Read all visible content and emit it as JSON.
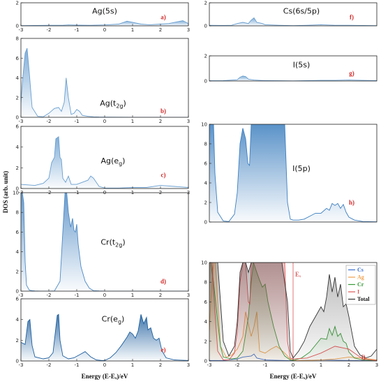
{
  "figure": {
    "ylabel": "DOS (arb. unit)",
    "xlabel_left": "Energy (E-Eₓ)/eV",
    "xlabel_right": "Energy (E-Eₓ)/eV"
  },
  "chart_data": [
    {
      "id": "a",
      "type": "area",
      "title": "Ag(5s)",
      "title_base": "Ag(5s)",
      "title_sub": "",
      "label": "a)",
      "xlim": [
        -3,
        3
      ],
      "ylim": [
        0,
        2
      ],
      "xticks": [
        -3,
        -2,
        -1,
        0,
        1,
        2,
        3
      ],
      "yticks": [
        0,
        2
      ],
      "color": "#6a9fd0",
      "series": [
        {
          "x": [
            -3,
            -2.5,
            -2,
            -1.5,
            -1.3,
            -1,
            -0.5,
            0,
            0.5,
            0.8,
            1,
            1.3,
            1.6,
            2,
            2.3,
            2.6,
            2.8,
            3
          ],
          "y": [
            0.02,
            0.03,
            0.05,
            0.05,
            0.08,
            0.06,
            0.05,
            0.08,
            0.15,
            0.4,
            0.3,
            0.15,
            0.1,
            0.15,
            0.2,
            0.35,
            0.45,
            0.2
          ]
        }
      ]
    },
    {
      "id": "b",
      "type": "area",
      "title": "Ag(t2g)",
      "title_base": "Ag(t",
      "title_sub": "2g",
      "label": "b)",
      "xlim": [
        -3,
        3
      ],
      "ylim": [
        0,
        8
      ],
      "xticks": [
        -3,
        -2,
        -1,
        0,
        1,
        2,
        3
      ],
      "yticks": [
        0,
        2,
        4,
        6,
        8
      ],
      "color": "#6a9fd0",
      "series": [
        {
          "x": [
            -3,
            -2.95,
            -2.85,
            -2.78,
            -2.7,
            -2.6,
            -2.4,
            -2.2,
            -2,
            -1.8,
            -1.65,
            -1.55,
            -1.45,
            -1.38,
            -1.3,
            -1.2,
            -1.1,
            -1,
            -0.9,
            -0.8,
            -0.6,
            -0.4,
            -0.2,
            0,
            1,
            2,
            3
          ],
          "y": [
            1.5,
            3.5,
            6.5,
            7.0,
            4.5,
            1.0,
            0.1,
            0.05,
            0.4,
            0.9,
            1.0,
            0.6,
            1.5,
            4.0,
            2.0,
            0.3,
            0.4,
            0.8,
            0.6,
            0.2,
            0.1,
            0.05,
            0.03,
            0.02,
            0.01,
            0.01,
            0.01
          ]
        }
      ]
    },
    {
      "id": "c",
      "type": "area",
      "title": "Ag(eg)",
      "title_base": "Ag(e",
      "title_sub": "g",
      "label": "c)",
      "xlim": [
        -3,
        3
      ],
      "ylim": [
        0,
        6
      ],
      "xticks": [
        -3,
        -2,
        -1,
        0,
        1,
        2,
        3
      ],
      "yticks": [
        0,
        2,
        4,
        6
      ],
      "color": "#6a9fd0",
      "series": [
        {
          "x": [
            -3,
            -2.5,
            -2.2,
            -2,
            -1.9,
            -1.8,
            -1.75,
            -1.65,
            -1.6,
            -1.55,
            -1.5,
            -1.4,
            -1.3,
            -1.2,
            -1,
            -0.8,
            -0.6,
            -0.5,
            -0.4,
            -0.3,
            -0.2,
            0,
            0.5,
            1,
            1.5,
            2,
            2.5,
            3
          ],
          "y": [
            0.4,
            0.3,
            0.5,
            1.0,
            2.5,
            3.0,
            4.8,
            5.0,
            3.0,
            2.8,
            1.0,
            0.6,
            1.2,
            0.4,
            0.4,
            0.6,
            0.8,
            1.2,
            1.0,
            0.6,
            0.2,
            0.05,
            0.05,
            0.1,
            0.1,
            0.3,
            0.2,
            0.1
          ]
        }
      ]
    },
    {
      "id": "d",
      "type": "area",
      "title": "Cr(t2g)",
      "title_base": "Cr(t",
      "title_sub": "2g",
      "label": "d)",
      "xlim": [
        -3,
        3
      ],
      "ylim": [
        0,
        10
      ],
      "xticks": [
        -3,
        -2,
        -1,
        0,
        1,
        2,
        3
      ],
      "yticks": [
        0,
        2,
        4,
        6,
        8,
        10
      ],
      "color": "#4f8ac4",
      "series": [
        {
          "x": [
            -3,
            -2.95,
            -2.9,
            -2.85,
            -2.8,
            -2.7,
            -2.6,
            -2.5,
            -2.3,
            -2,
            -1.8,
            -1.6,
            -1.5,
            -1.42,
            -1.36,
            -1.3,
            -1.22,
            -1.15,
            -1.1,
            -1.05,
            -1.0,
            -0.95,
            -0.85,
            -0.7,
            -0.55,
            -0.4,
            -0.2,
            0,
            3
          ],
          "y": [
            10,
            10,
            9,
            3,
            0.6,
            0.1,
            0.05,
            0.02,
            0.01,
            0.01,
            0.02,
            1.0,
            6.0,
            10,
            10,
            8.0,
            6.5,
            7.4,
            6.2,
            6.0,
            6.8,
            4.8,
            2.5,
            1.0,
            0.3,
            0.05,
            0.02,
            0.01,
            0.01
          ]
        }
      ]
    },
    {
      "id": "e",
      "type": "area",
      "title": "Cr(eg)",
      "title_base": "Cr(e",
      "title_sub": "g",
      "label": "e)",
      "xlim": [
        -3,
        3
      ],
      "ylim": [
        0,
        6
      ],
      "xticks": [
        -3,
        -2,
        -1,
        0,
        1,
        2,
        3
      ],
      "yticks": [
        0,
        2,
        4,
        6
      ],
      "color": "#1f5f9e",
      "series": [
        {
          "x": [
            -3,
            -2.85,
            -2.75,
            -2.68,
            -2.6,
            -2.5,
            -2.2,
            -2,
            -1.85,
            -1.7,
            -1.65,
            -1.6,
            -1.5,
            -1.3,
            -1.1,
            -0.9,
            -0.7,
            -0.5,
            -0.3,
            -0.1,
            0,
            0.2,
            0.4,
            0.6,
            0.8,
            0.9,
            1.0,
            1.1,
            1.2,
            1.3,
            1.4,
            1.5,
            1.55,
            1.65,
            1.75,
            1.85,
            1.95,
            2.05,
            2.2,
            2.5,
            3
          ],
          "y": [
            1.8,
            1.6,
            3.8,
            4.0,
            1.5,
            0.4,
            0.2,
            0.3,
            0.8,
            4.4,
            4.5,
            2.0,
            0.5,
            0.2,
            0.3,
            0.6,
            0.9,
            0.4,
            0.1,
            0.05,
            0.05,
            0.3,
            0.8,
            1.5,
            2.3,
            2.8,
            2.6,
            2.2,
            2.9,
            4.5,
            3.6,
            4.2,
            3.0,
            3.2,
            2.2,
            2.0,
            2.2,
            1.0,
            0.3,
            0.1,
            0.05
          ]
        }
      ]
    },
    {
      "id": "f",
      "type": "area",
      "title": "Cs(6s/5p)",
      "title_base": "Cs(6s/5p)",
      "title_sub": "",
      "label": "f)",
      "xlim": [
        -3,
        3
      ],
      "ylim": [
        0,
        2
      ],
      "xticks": [],
      "yticks": [
        0,
        2
      ],
      "color": "#6a9fd0",
      "series": [
        {
          "x": [
            -3,
            -2.5,
            -2.2,
            -2,
            -1.8,
            -1.6,
            -1.5,
            -1.4,
            -1.3,
            -1.1,
            -1,
            -0.5,
            0,
            0.5,
            1,
            1.5,
            2,
            2.5,
            3
          ],
          "y": [
            0.05,
            0.03,
            0.05,
            0.2,
            0.3,
            0.2,
            0.5,
            0.7,
            0.3,
            0.2,
            0.1,
            0.05,
            0.02,
            0.05,
            0.1,
            0.05,
            0.05,
            0.03,
            0.02
          ]
        }
      ]
    },
    {
      "id": "g",
      "type": "area",
      "title": "I(5s)",
      "title_base": "I(5s)",
      "title_sub": "",
      "label": "g)",
      "xlim": [
        -3,
        3
      ],
      "ylim": [
        0,
        2
      ],
      "xticks": [],
      "yticks": [
        0,
        2
      ],
      "color": "#6a9fd0",
      "series": [
        {
          "x": [
            -3,
            -2.5,
            -2,
            -1.9,
            -1.8,
            -1.7,
            -1.6,
            -1.4,
            -1.2,
            -1,
            -0.5,
            0,
            0.5,
            1,
            1.5,
            2,
            2.5,
            3
          ],
          "y": [
            0.02,
            0.03,
            0.1,
            0.3,
            0.4,
            0.35,
            0.15,
            0.08,
            0.05,
            0.03,
            0.02,
            0.01,
            0.03,
            0.05,
            0.05,
            0.08,
            0.05,
            0.03
          ]
        }
      ]
    },
    {
      "id": "h",
      "type": "area",
      "title": "I(5p)",
      "title_base": "I(5p)",
      "title_sub": "",
      "label": "h)",
      "xlim": [
        -3,
        3
      ],
      "ylim": [
        0,
        10
      ],
      "xticks": [],
      "yticks": [
        0,
        2,
        4,
        6,
        8,
        10
      ],
      "color": "#3d7fbf",
      "series": [
        {
          "x": [
            -3,
            -2.85,
            -2.8,
            -2.7,
            -2.5,
            -2.3,
            -2.1,
            -2,
            -1.9,
            -1.8,
            -1.7,
            -1.62,
            -1.56,
            -1.5,
            -1.4,
            -1.3,
            -1.2,
            -1.1,
            -1,
            -0.8,
            -0.6,
            -0.4,
            -0.3,
            -0.2,
            -0.1,
            0,
            0.2,
            0.4,
            0.6,
            0.8,
            1.0,
            1.2,
            1.3,
            1.4,
            1.5,
            1.6,
            1.7,
            1.8,
            1.9,
            2.0,
            2.2,
            2.5,
            3
          ],
          "y": [
            10,
            10,
            5,
            1.0,
            0.1,
            0.05,
            0.8,
            3.0,
            8.0,
            9.6,
            8.5,
            6.0,
            5.8,
            10,
            10,
            10,
            10,
            10,
            10,
            10,
            10,
            10,
            10,
            2.0,
            0.3,
            0.2,
            0.2,
            0.3,
            0.6,
            0.9,
            0.9,
            1.4,
            1.2,
            1.9,
            1.7,
            1.9,
            1.4,
            1.8,
            1.0,
            0.5,
            0.2,
            0.05,
            0.02
          ]
        }
      ]
    },
    {
      "id": "i",
      "type": "line",
      "title": "",
      "label": "i)",
      "xlim": [
        -3,
        3
      ],
      "ylim": [
        0,
        10
      ],
      "xticks": [
        -3,
        -2,
        -1,
        0,
        1,
        2,
        3
      ],
      "yticks": [
        0,
        2,
        4,
        6,
        8,
        10
      ],
      "fermi_label": "Eₓ",
      "fermi_x": 0,
      "series": [
        {
          "name": "Cs",
          "color": "#3b6fd1",
          "fill": false,
          "x": [
            -3,
            -2.5,
            -2,
            -1.8,
            -1.5,
            -1.4,
            -1.3,
            -1,
            0,
            1,
            2,
            3
          ],
          "y": [
            0.05,
            0.05,
            0.2,
            0.4,
            0.5,
            0.7,
            0.3,
            0.1,
            0.02,
            0.1,
            0.05,
            0.02
          ]
        },
        {
          "name": "Ag",
          "color": "#f0a04a",
          "fill": true,
          "x": [
            -3,
            -2.95,
            -2.85,
            -2.78,
            -2.7,
            -2.6,
            -2.4,
            -2.2,
            -2,
            -1.8,
            -1.7,
            -1.5,
            -1.4,
            -1.3,
            -1.2,
            -1,
            -0.8,
            -0.6,
            -0.5,
            -0.3,
            -0.1,
            0,
            0.5,
            1,
            1.5,
            2,
            2.5,
            3
          ],
          "y": [
            3,
            6,
            10,
            10,
            6,
            1.5,
            0.4,
            0.6,
            1.2,
            2.5,
            5.0,
            2.5,
            3.5,
            5.0,
            1.0,
            0.8,
            1.2,
            1.5,
            1.3,
            0.8,
            0.2,
            0.05,
            0.05,
            0.1,
            0.2,
            0.4,
            0.3,
            0.1
          ]
        },
        {
          "name": "Cr",
          "color": "#3a9b3a",
          "fill": true,
          "x": [
            -3,
            -2.95,
            -2.85,
            -2.7,
            -2.6,
            -2.5,
            -2.2,
            -2,
            -1.8,
            -1.6,
            -1.5,
            -1.42,
            -1.3,
            -1.2,
            -1.1,
            -1.0,
            -0.9,
            -0.7,
            -0.5,
            -0.3,
            -0.1,
            0,
            0.3,
            0.6,
            0.8,
            1.0,
            1.2,
            1.3,
            1.4,
            1.5,
            1.6,
            1.7,
            1.8,
            1.9,
            2.0,
            2.2,
            2.5,
            3
          ],
          "y": [
            10,
            10,
            8,
            4,
            1.5,
            0.4,
            0.2,
            0.3,
            1.0,
            4.5,
            8.0,
            10,
            9.0,
            8.2,
            7.5,
            7.8,
            6.0,
            3.5,
            1.5,
            0.5,
            0.1,
            0.05,
            0.3,
            0.9,
            1.6,
            2.3,
            2.2,
            3.3,
            2.6,
            3.5,
            2.5,
            2.8,
            2.0,
            1.8,
            0.9,
            0.3,
            0.1,
            0.05
          ]
        },
        {
          "name": "I",
          "color": "#e05555",
          "fill": true,
          "x": [
            -3,
            -2.9,
            -2.8,
            -2.7,
            -2.5,
            -2.3,
            -2.1,
            -2,
            -1.9,
            -1.8,
            -1.7,
            -1.6,
            -1.55,
            -1.5,
            -1.4,
            -1.2,
            -1,
            -0.8,
            -0.6,
            -0.4,
            -0.3,
            -0.2,
            -0.1,
            0,
            0.5,
            1,
            1.5,
            2,
            2.5,
            3
          ],
          "y": [
            10,
            10,
            5,
            1.0,
            0.1,
            0.1,
            0.8,
            3.0,
            8.0,
            10,
            10,
            6.0,
            5.8,
            10,
            10,
            10,
            10,
            10,
            10,
            10,
            10,
            2.0,
            0.3,
            0.2,
            0.3,
            0.8,
            1.5,
            1.2,
            0.2,
            0.05
          ]
        },
        {
          "name": "Total",
          "color": "#333333",
          "fill": true,
          "x": [
            -3,
            -2.85,
            -2.7,
            -2.6,
            -2.5,
            -2.3,
            -2.1,
            -2,
            -1.9,
            -1.8,
            -1.7,
            -1.6,
            -1.5,
            -1.4,
            -1.2,
            -1,
            -0.8,
            -0.6,
            -0.4,
            -0.2,
            -0.1,
            0,
            0.2,
            0.4,
            0.6,
            0.8,
            1.0,
            1.1,
            1.2,
            1.3,
            1.4,
            1.5,
            1.6,
            1.7,
            1.8,
            1.9,
            2.0,
            2.1,
            2.2,
            2.4,
            2.6,
            2.8,
            3
          ],
          "y": [
            10,
            10,
            10,
            6,
            2.0,
            0.5,
            1.5,
            4.0,
            9.0,
            10,
            10,
            9.0,
            10,
            10,
            10,
            10,
            10,
            10,
            10,
            6.0,
            1.0,
            0.3,
            1.0,
            2.0,
            3.5,
            4.5,
            5.5,
            5.0,
            6.5,
            8.8,
            7.0,
            8.5,
            6.5,
            7.8,
            5.5,
            5.8,
            4.5,
            3.0,
            1.5,
            0.6,
            0.3,
            0.5,
            1.2
          ]
        }
      ],
      "legend": [
        "Cs",
        "Ag",
        "Cr",
        "I",
        "Total"
      ]
    }
  ]
}
